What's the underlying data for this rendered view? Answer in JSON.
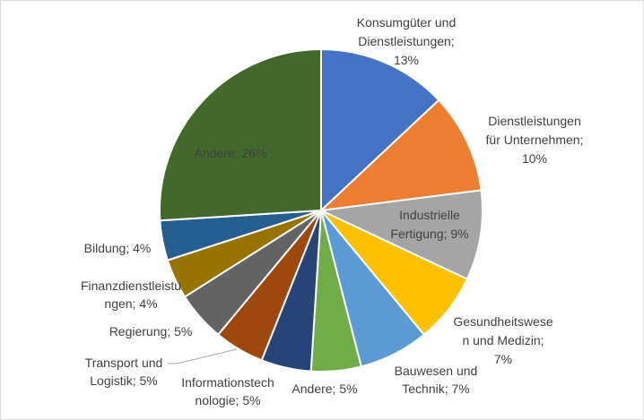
{
  "chart_data": {
    "type": "pie",
    "title": "",
    "legend": "none",
    "slices": [
      {
        "name": "Konsumgüter und Dienstleistungen",
        "value": 13,
        "label_lines": [
          "Konsumgüter und",
          "Dienstleistungen;",
          "13%"
        ],
        "color": "#4472C4"
      },
      {
        "name": "Dienstleistungen für Unternehmen",
        "value": 10,
        "label_lines": [
          "Dienstleistungen",
          "für Unternehmen;",
          "10%"
        ],
        "color": "#ED7D31"
      },
      {
        "name": "Industrielle Fertigung",
        "value": 9,
        "label_lines": [
          "Industrielle",
          "Fertigung; 9%"
        ],
        "color": "#A5A5A5"
      },
      {
        "name": "Gesundheitswesen und Medizin",
        "value": 7,
        "label_lines": [
          "Gesundheitswese",
          "n und Medizin;",
          "7%"
        ],
        "color": "#FFC000"
      },
      {
        "name": "Bauwesen und Technik",
        "value": 7,
        "label_lines": [
          "Bauwesen und",
          "Technik; 7%"
        ],
        "color": "#5B9BD5"
      },
      {
        "name": "Andere",
        "value": 5,
        "label_lines": [
          "Andere; 5%"
        ],
        "color": "#70AD47"
      },
      {
        "name": "Informationstechnologie",
        "value": 5,
        "label_lines": [
          "Informationstech",
          "nologie; 5%"
        ],
        "color": "#264478"
      },
      {
        "name": "Transport und Logistik",
        "value": 5,
        "label_lines": [
          "Transport und",
          "Logistik; 5%"
        ],
        "color": "#9E480E"
      },
      {
        "name": "Regierung",
        "value": 5,
        "label_lines": [
          "Regierung; 5%"
        ],
        "color": "#636363"
      },
      {
        "name": "Finanzdienstleistungen",
        "value": 4,
        "label_lines": [
          "Finanzdienstleistu",
          "ngen; 4%"
        ],
        "color": "#997300"
      },
      {
        "name": "Bildung",
        "value": 4,
        "label_lines": [
          "Bildung; 4%"
        ],
        "color": "#255E91"
      },
      {
        "name": "Andere",
        "value": 26,
        "label_lines": [
          "Andere; 26%"
        ],
        "color": "#43682B"
      }
    ]
  }
}
